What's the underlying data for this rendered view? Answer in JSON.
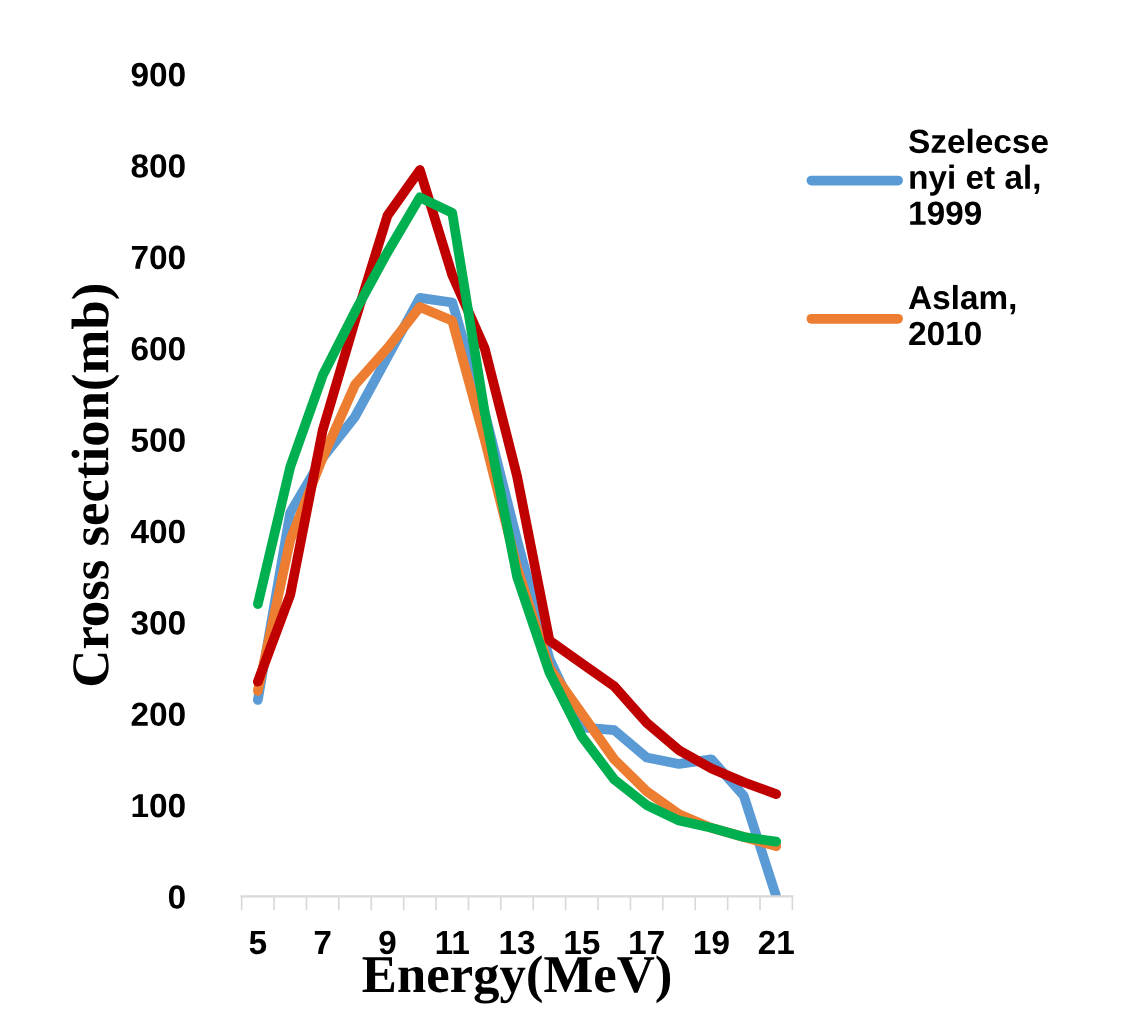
{
  "chart_data": {
    "type": "line",
    "xlabel": "Energy(MeV)",
    "ylabel": "Cross section(mb)",
    "categories": [
      "5",
      null,
      "7",
      null,
      "9",
      null,
      "11",
      null,
      "13",
      null,
      "15",
      null,
      "17",
      null,
      "19",
      null,
      "21"
    ],
    "ylim": [
      0,
      900
    ],
    "yticks": [
      0,
      100,
      200,
      300,
      400,
      500,
      600,
      700,
      800,
      900
    ],
    "grid": false,
    "legend": "right",
    "marker": "none",
    "line_style": "solid",
    "series": [
      {
        "name": "Szelecse\nnyi et al,\n1999",
        "color": "#5b9bd5",
        "values": [
          215,
          420,
          480,
          525,
          590,
          655,
          650,
          530,
          390,
          260,
          185,
          182,
          152,
          145,
          150,
          110,
          0
        ]
      },
      {
        "name": "Aslam,\n2010",
        "color": "#ed7d31",
        "values": [
          225,
          390,
          480,
          560,
          600,
          645,
          630,
          500,
          360,
          250,
          200,
          150,
          115,
          90,
          75,
          65,
          55
        ]
      },
      {
        "color": "#c00000",
        "values": [
          235,
          330,
          510,
          630,
          745,
          795,
          680,
          600,
          460,
          280,
          255,
          230,
          190,
          160,
          140,
          125,
          112
        ]
      },
      {
        "color": "#00b050",
        "values": [
          320,
          470,
          570,
          640,
          705,
          765,
          748,
          530,
          350,
          245,
          175,
          128,
          100,
          83,
          75,
          65,
          60
        ]
      }
    ]
  }
}
